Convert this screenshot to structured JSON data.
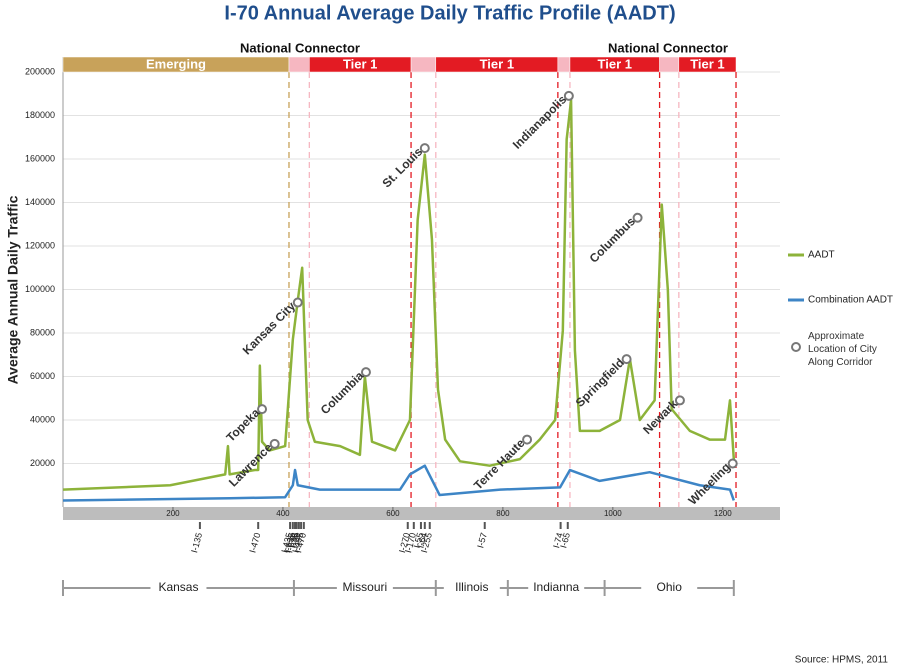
{
  "chart_data": {
    "type": "line",
    "title": "I-70 Annual Average Daily Traffic Profile (AADT)",
    "y_label": "Average Annual Daily Traffic",
    "xlim": [
      0,
      1304
    ],
    "ylim": [
      0,
      200000
    ],
    "xticks": [
      200,
      400,
      600,
      800,
      1000,
      1200
    ],
    "yticks": [
      20000,
      40000,
      60000,
      80000,
      100000,
      120000,
      140000,
      160000,
      180000,
      200000
    ],
    "grid": true,
    "series": [
      {
        "name": "AADT",
        "color": "#8db33a",
        "x": [
          0,
          195,
          295,
          300,
          303,
          349,
          355,
          358,
          362,
          376,
          404,
          418,
          427,
          435,
          445,
          458,
          504,
          540,
          549,
          562,
          604,
          631,
          645,
          658,
          671,
          682,
          695,
          722,
          776,
          831,
          867,
          895,
          909,
          916,
          924,
          931,
          940,
          976,
          1013,
          1031,
          1049,
          1076,
          1089,
          1100,
          1107,
          1140,
          1176,
          1204,
          1213,
          1220
        ],
        "values": [
          8000,
          10000,
          15000,
          28000,
          15000,
          17000,
          17000,
          65000,
          30000,
          26000,
          28000,
          77000,
          95000,
          110000,
          40000,
          30000,
          28000,
          24000,
          60000,
          30000,
          26000,
          40000,
          132000,
          162000,
          123000,
          54000,
          31000,
          21000,
          19000,
          22000,
          31000,
          40000,
          81000,
          169000,
          187000,
          72000,
          35000,
          35000,
          40000,
          68000,
          40000,
          49000,
          139000,
          100000,
          45000,
          35000,
          31000,
          31000,
          49000,
          22000
        ]
      },
      {
        "name": "Combination AADT",
        "color": "#3d85c6",
        "x": [
          0,
          304,
          404,
          418,
          422,
          427,
          467,
          613,
          631,
          658,
          685,
          795,
          904,
          922,
          976,
          1067,
          1158,
          1213,
          1220
        ],
        "values": [
          3000,
          4000,
          4500,
          10000,
          17000,
          10000,
          8000,
          8000,
          15000,
          19000,
          5500,
          8000,
          9000,
          17000,
          12000,
          16000,
          10000,
          8000,
          3000
        ]
      }
    ],
    "cities": {
      "name": "Approximate Location of City Along Corridor",
      "labels": [
        "Topeka",
        "Lawrence",
        "Kansas City",
        "Columbia",
        "St. Louis",
        "Terre Haute",
        "Indianapolis",
        "Springfield",
        "Columbus",
        "Newark",
        "Wheeling"
      ],
      "x": [
        362,
        385,
        427,
        551,
        658,
        844,
        920,
        1025,
        1045,
        1122,
        1218
      ],
      "values": [
        45000,
        29000,
        94000,
        62000,
        165000,
        31000,
        189000,
        68000,
        133000,
        49000,
        20000
      ]
    },
    "interstates": {
      "labels": [
        "I-135",
        "I-470",
        "I-435",
        "I-635",
        "I-670",
        "I-35",
        "I-29",
        "I-435",
        "I-470",
        "I-270",
        "I-170",
        "I-55",
        "I-64",
        "I-255",
        "I-57",
        "I-74",
        "I-65"
      ],
      "x": [
        249,
        355,
        413,
        418,
        422,
        425,
        429,
        433,
        438,
        627,
        638,
        651,
        658,
        667,
        767,
        905,
        918
      ]
    },
    "states": {
      "labels": [
        "Kansas",
        "Missouri",
        "Illinois",
        "Indianna",
        "Ohio"
      ],
      "bounds": [
        0,
        420,
        678,
        809,
        985,
        1220
      ]
    },
    "segments": {
      "labels": [
        "Emerging",
        null,
        "Tier 1",
        null,
        "Tier 1",
        null,
        "Tier 1",
        null,
        "Tier 1"
      ],
      "start": [
        0,
        411,
        448,
        633,
        678,
        900,
        922,
        1085,
        1120
      ],
      "end": [
        411,
        448,
        633,
        678,
        900,
        922,
        1085,
        1120,
        1224
      ],
      "colors": [
        "#c8a25a",
        "#f6b7c1",
        "#e31b23",
        "#f6b7c1",
        "#e31b23",
        "#f6b7c1",
        "#e31b23",
        "#f6b7c1",
        "#e31b23"
      ]
    },
    "annotations": [
      "National Connector",
      "National Connector"
    ],
    "source": "Source: HPMS, 2011"
  }
}
